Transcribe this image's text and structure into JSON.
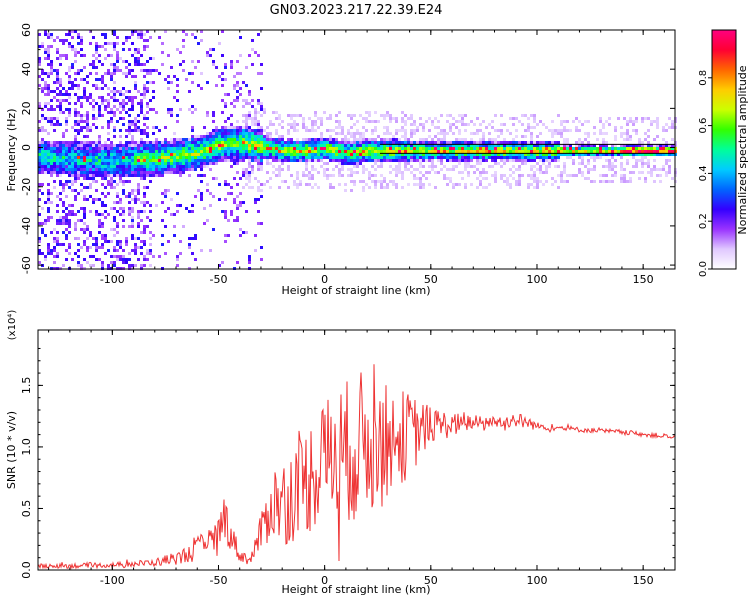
{
  "title": "GN03.2023.217.22.39.E24",
  "chart_data": [
    {
      "type": "heatmap",
      "title": "GN03.2023.217.22.39.E24",
      "xlabel": "Height of straight line (km)",
      "ylabel": "Frequency (Hz)",
      "xlim": [
        -135,
        165
      ],
      "ylim": [
        -62,
        60
      ],
      "xticks": [
        -100,
        -50,
        0,
        50,
        100,
        150
      ],
      "yticks": [
        -60,
        -40,
        -20,
        0,
        20,
        40,
        60
      ],
      "colorbar": {
        "label": "Normalized spectral amplitude",
        "range": [
          0,
          1
        ],
        "ticks": [
          0.0,
          0.2,
          0.4,
          0.6,
          0.8
        ],
        "tick_labels": [
          "0.0",
          "0.2",
          "0.4",
          "0.6",
          "0.8"
        ],
        "colormap": [
          "#ffffff",
          "#e0c8ff",
          "#9933ff",
          "#3300ff",
          "#0066ff",
          "#00ccff",
          "#00ff99",
          "#33ff00",
          "#ccff00",
          "#ffcc00",
          "#ff6600",
          "#ff0033",
          "#ff0080"
        ]
      },
      "ridge": {
        "x": [
          -135,
          -120,
          -100,
          -80,
          -60,
          -50,
          -40,
          -30,
          -20,
          -10,
          0,
          10,
          20,
          40,
          60,
          80,
          100,
          120,
          140,
          165
        ],
        "y": [
          -4,
          -5,
          -6,
          -5,
          -2,
          2,
          3,
          1,
          -1,
          -1,
          0,
          -2,
          -1,
          -1,
          -1,
          -1,
          -1,
          -1,
          -1,
          -1
        ]
      }
    },
    {
      "type": "line",
      "xlabel": "Height of straight line (km)",
      "ylabel": "SNR (10 * v/v)",
      "y_multiplier": "(x10⁴)",
      "xlim": [
        -135,
        165
      ],
      "ylim": [
        0,
        1.95
      ],
      "xticks": [
        -100,
        -50,
        0,
        50,
        100,
        150
      ],
      "yticks": [
        0.0,
        0.5,
        1.0,
        1.5
      ],
      "ytick_labels": [
        "0.0",
        "0.5",
        "1.0",
        "1.5"
      ],
      "series": [
        {
          "color": "#ee3333",
          "envelope": {
            "x": [
              -135,
              -100,
              -80,
              -65,
              -55,
              -50,
              -47,
              -45,
              -40,
              -35,
              -30,
              -25,
              -20,
              -10,
              0,
              5,
              10,
              20,
              25,
              30,
              40,
              50,
              60,
              70,
              80,
              90,
              95,
              100,
              120,
              140,
              165
            ],
            "mid": [
              0.03,
              0.04,
              0.06,
              0.12,
              0.22,
              0.3,
              0.45,
              0.32,
              0.12,
              0.08,
              0.3,
              0.55,
              0.55,
              0.7,
              0.9,
              0.95,
              0.95,
              1.05,
              1.0,
              1.05,
              1.1,
              1.18,
              1.18,
              1.2,
              1.2,
              1.22,
              1.2,
              1.17,
              1.14,
              1.12,
              1.08
            ],
            "amp": [
              0.02,
              0.02,
              0.03,
              0.07,
              0.12,
              0.15,
              0.2,
              0.15,
              0.06,
              0.04,
              0.15,
              0.3,
              0.35,
              0.45,
              0.5,
              0.55,
              0.6,
              0.6,
              0.55,
              0.45,
              0.35,
              0.15,
              0.1,
              0.06,
              0.05,
              0.06,
              0.06,
              0.03,
              0.02,
              0.02,
              0.02
            ]
          }
        }
      ]
    }
  ]
}
